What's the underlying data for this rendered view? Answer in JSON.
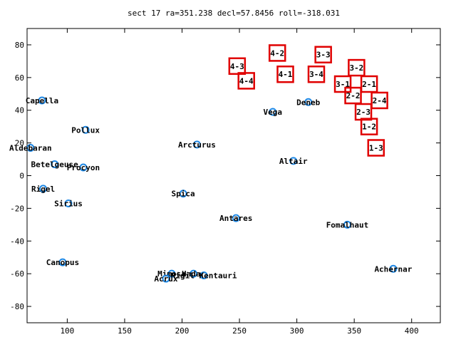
{
  "chart_data": {
    "type": "scatter",
    "title": "sect 17 ra=351.238 decl=57.8456 roll=-318.031",
    "xlabel": "",
    "ylabel": "",
    "xlim": [
      65,
      425
    ],
    "ylim": [
      -90,
      90
    ],
    "x_ticks": [
      100,
      150,
      200,
      250,
      300,
      350,
      400
    ],
    "y_ticks": [
      -80,
      -60,
      -40,
      -20,
      0,
      20,
      40,
      60,
      80
    ],
    "x_tick_labels": [
      "100",
      "150",
      "200",
      "250",
      "300",
      "350",
      "400"
    ],
    "y_tick_labels": [
      "-80",
      "-60",
      "-40",
      "-20",
      "0",
      "20",
      "40",
      "60",
      "80"
    ],
    "grid": false,
    "marker_color": "#1e88e5",
    "sector_color": "#e00000",
    "stars": [
      {
        "name": "Capella",
        "x": 78,
        "y": 46
      },
      {
        "name": "Pollux",
        "x": 116,
        "y": 28
      },
      {
        "name": "Aldebaran",
        "x": 68,
        "y": 17
      },
      {
        "name": "Betelgeuse",
        "x": 89,
        "y": 7
      },
      {
        "name": "Procyon",
        "x": 114,
        "y": 5
      },
      {
        "name": "Rigel",
        "x": 79,
        "y": -8
      },
      {
        "name": "Sirius",
        "x": 101,
        "y": -17
      },
      {
        "name": "Canopus",
        "x": 96,
        "y": -53
      },
      {
        "name": "Arcturus",
        "x": 213,
        "y": 19
      },
      {
        "name": "Spica",
        "x": 201,
        "y": -11
      },
      {
        "name": "Antares",
        "x": 247,
        "y": -26
      },
      {
        "name": "Mimosa",
        "x": 191,
        "y": -60
      },
      {
        "name": "Acrux",
        "x": 186,
        "y": -63
      },
      {
        "name": "Hadar",
        "x": 210,
        "y": -60
      },
      {
        "name": "Rigil Kentauri",
        "x": 219,
        "y": -61
      },
      {
        "name": "Vega",
        "x": 279,
        "y": 39
      },
      {
        "name": "Deneb",
        "x": 310,
        "y": 45
      },
      {
        "name": "Altair",
        "x": 297,
        "y": 9
      },
      {
        "name": "Fomalhaut",
        "x": 344,
        "y": -30
      },
      {
        "name": "Achernar",
        "x": 384,
        "y": -57
      }
    ],
    "sectors": [
      {
        "label": "4-2",
        "x": 283,
        "y": 75
      },
      {
        "label": "3-3",
        "x": 323,
        "y": 74
      },
      {
        "label": "4-3",
        "x": 248,
        "y": 67
      },
      {
        "label": "3-2",
        "x": 352,
        "y": 66
      },
      {
        "label": "4-1",
        "x": 290,
        "y": 62
      },
      {
        "label": "3-4",
        "x": 317,
        "y": 62
      },
      {
        "label": "4-4",
        "x": 256,
        "y": 58
      },
      {
        "label": "3-1",
        "x": 340,
        "y": 56
      },
      {
        "label": "2-1",
        "x": 363,
        "y": 56
      },
      {
        "label": "2-2",
        "x": 349,
        "y": 49
      },
      {
        "label": "2-4",
        "x": 372,
        "y": 46
      },
      {
        "label": "2-3",
        "x": 358,
        "y": 39
      },
      {
        "label": "1-2",
        "x": 363,
        "y": 30
      },
      {
        "label": "1-3",
        "x": 369,
        "y": 17
      }
    ]
  }
}
